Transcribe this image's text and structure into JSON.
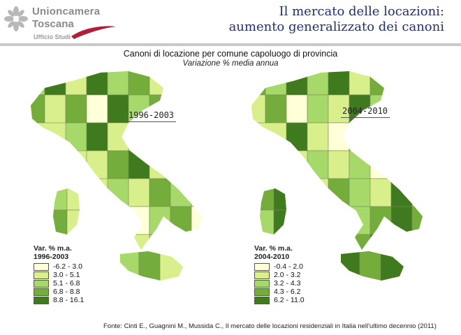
{
  "header": {
    "logo_line1": "Unioncamera",
    "logo_line2": "Toscana",
    "logo_sub": "Ufficio Studi",
    "title_line1": "Il mercato delle locazioni:",
    "title_line2": "aumento generalizzato dei canoni"
  },
  "subtitle": {
    "line1": "Canoni di locazione per comune capoluogo di provincia",
    "line2": "Variazione % media annua"
  },
  "maps": [
    {
      "period": "1996-2003",
      "legend_title1": "Var. % m.a.",
      "legend_title2": "1996-2003",
      "classes": [
        {
          "range": "-6.2 - 3.0",
          "color": "#ffffd8"
        },
        {
          "range": "3.0 - 5.1",
          "color": "#d9ef8b"
        },
        {
          "range": "5.1 - 6.8",
          "color": "#a6d96a"
        },
        {
          "range": "6.8 - 8.8",
          "color": "#74ad3c"
        },
        {
          "range": "8.8 - 16.1",
          "color": "#3f7a1e"
        }
      ]
    },
    {
      "period": "2004-2010",
      "legend_title1": "Var. % m.a.",
      "legend_title2": "2004-2010",
      "classes": [
        {
          "range": "-0.4 - 2.0",
          "color": "#ffffd8"
        },
        {
          "range": "2.0 - 3.2",
          "color": "#d9ef8b"
        },
        {
          "range": "3.2 - 4.3",
          "color": "#a6d96a"
        },
        {
          "range": "4.3 - 6.2",
          "color": "#74ad3c"
        },
        {
          "range": "6.2 - 11.0",
          "color": "#3f7a1e"
        }
      ]
    }
  ],
  "source": "Fonte: Cinti E., Guagnini M., Mussida C., Il mercato delle locazioni residenziali in Italia nell'ultimo decennio (2011)"
}
